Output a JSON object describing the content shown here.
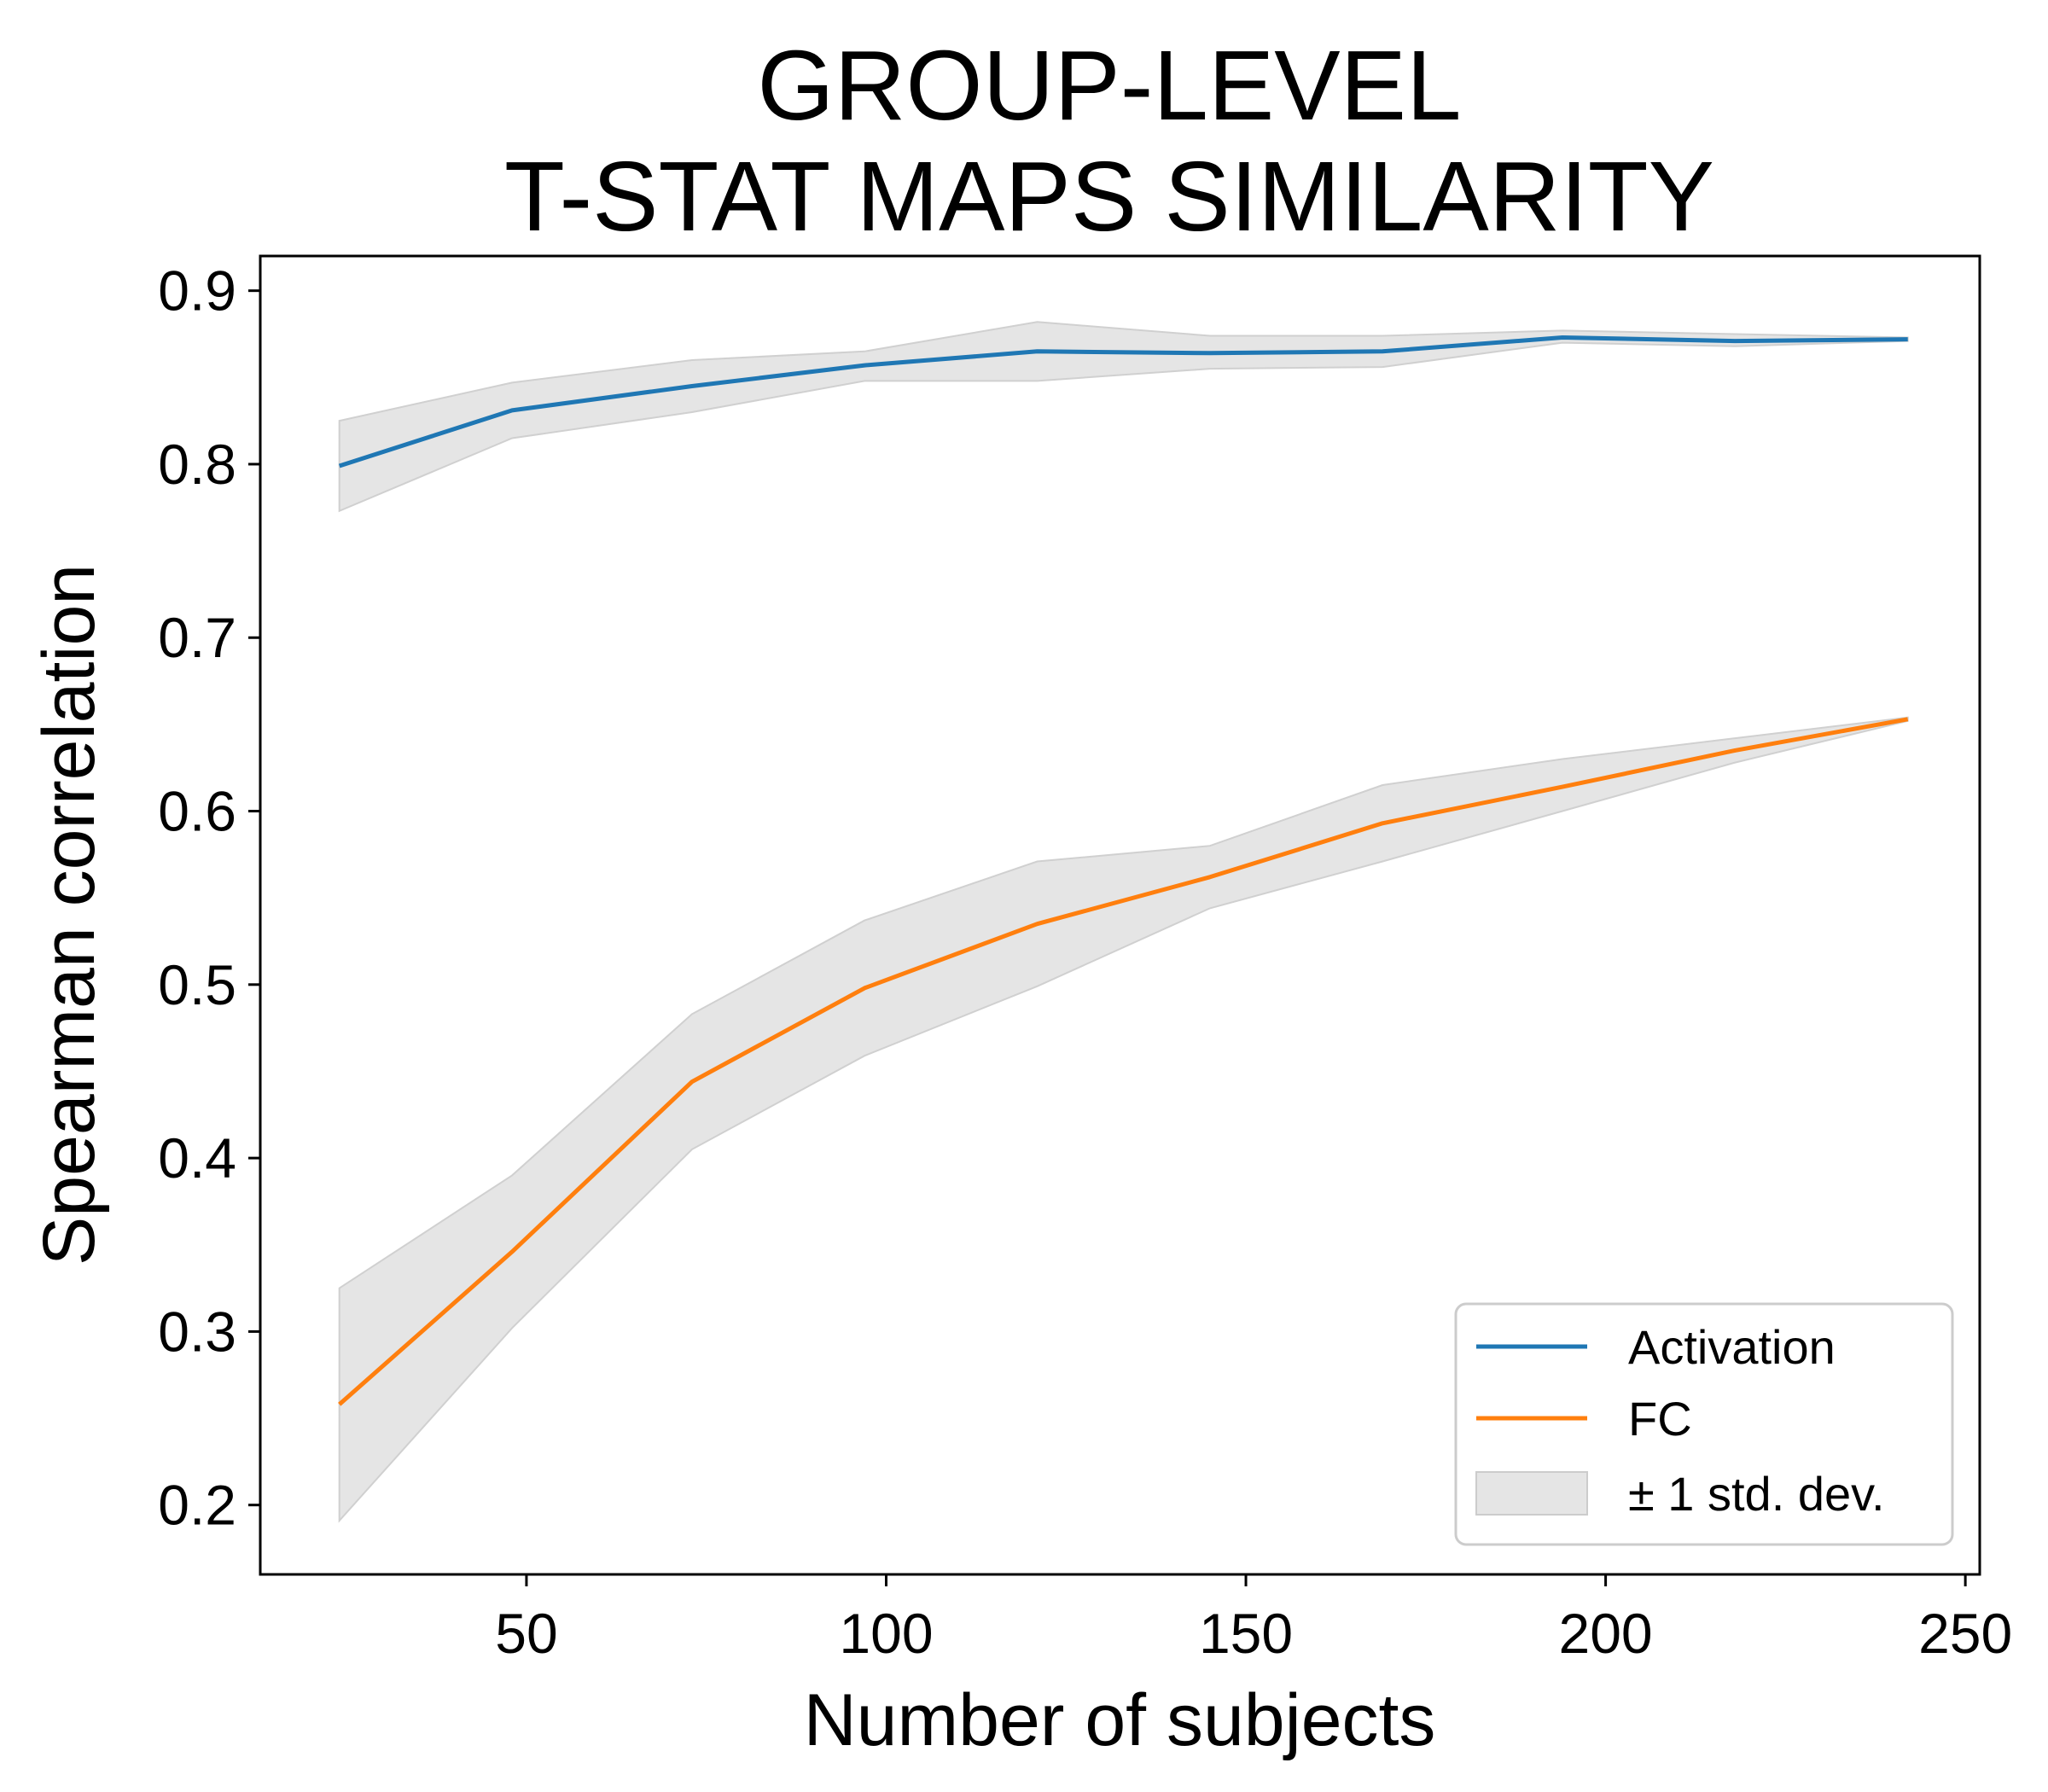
{
  "chart_data": {
    "type": "line",
    "title_lines": [
      "GROUP-LEVEL",
      "T-STAT MAPS SIMILARITY"
    ],
    "xlabel": "Number of subjects",
    "ylabel": "Spearman correlation",
    "xlim": [
      13,
      252
    ],
    "ylim": [
      0.16,
      0.92
    ],
    "xticks": [
      50,
      100,
      150,
      200,
      250
    ],
    "yticks": [
      0.2,
      0.3,
      0.4,
      0.5,
      0.6,
      0.7,
      0.8,
      0.9
    ],
    "x": [
      24,
      48,
      73,
      97,
      121,
      145,
      169,
      194,
      218,
      242
    ],
    "series": [
      {
        "name": "Activation",
        "color": "#1f77b4",
        "values": [
          0.799,
          0.831,
          0.845,
          0.857,
          0.865,
          0.864,
          0.865,
          0.873,
          0.871,
          0.872
        ],
        "upper": [
          0.825,
          0.847,
          0.86,
          0.865,
          0.882,
          0.874,
          0.874,
          0.877,
          0.875,
          0.873
        ],
        "lower": [
          0.773,
          0.815,
          0.83,
          0.848,
          0.848,
          0.855,
          0.856,
          0.87,
          0.868,
          0.871
        ]
      },
      {
        "name": "FC",
        "color": "#ff7f0e",
        "values": [
          0.258,
          0.346,
          0.444,
          0.498,
          0.535,
          0.562,
          0.593,
          0.614,
          0.635,
          0.653
        ],
        "upper": [
          0.325,
          0.39,
          0.483,
          0.537,
          0.571,
          0.58,
          0.615,
          0.63,
          0.642,
          0.654
        ],
        "lower": [
          0.191,
          0.302,
          0.405,
          0.459,
          0.499,
          0.544,
          0.571,
          0.6,
          0.628,
          0.652
        ]
      }
    ],
    "band_label": "± 1 std. dev.",
    "band_color": "#e5e5e5",
    "legend_position": "lower-right"
  }
}
